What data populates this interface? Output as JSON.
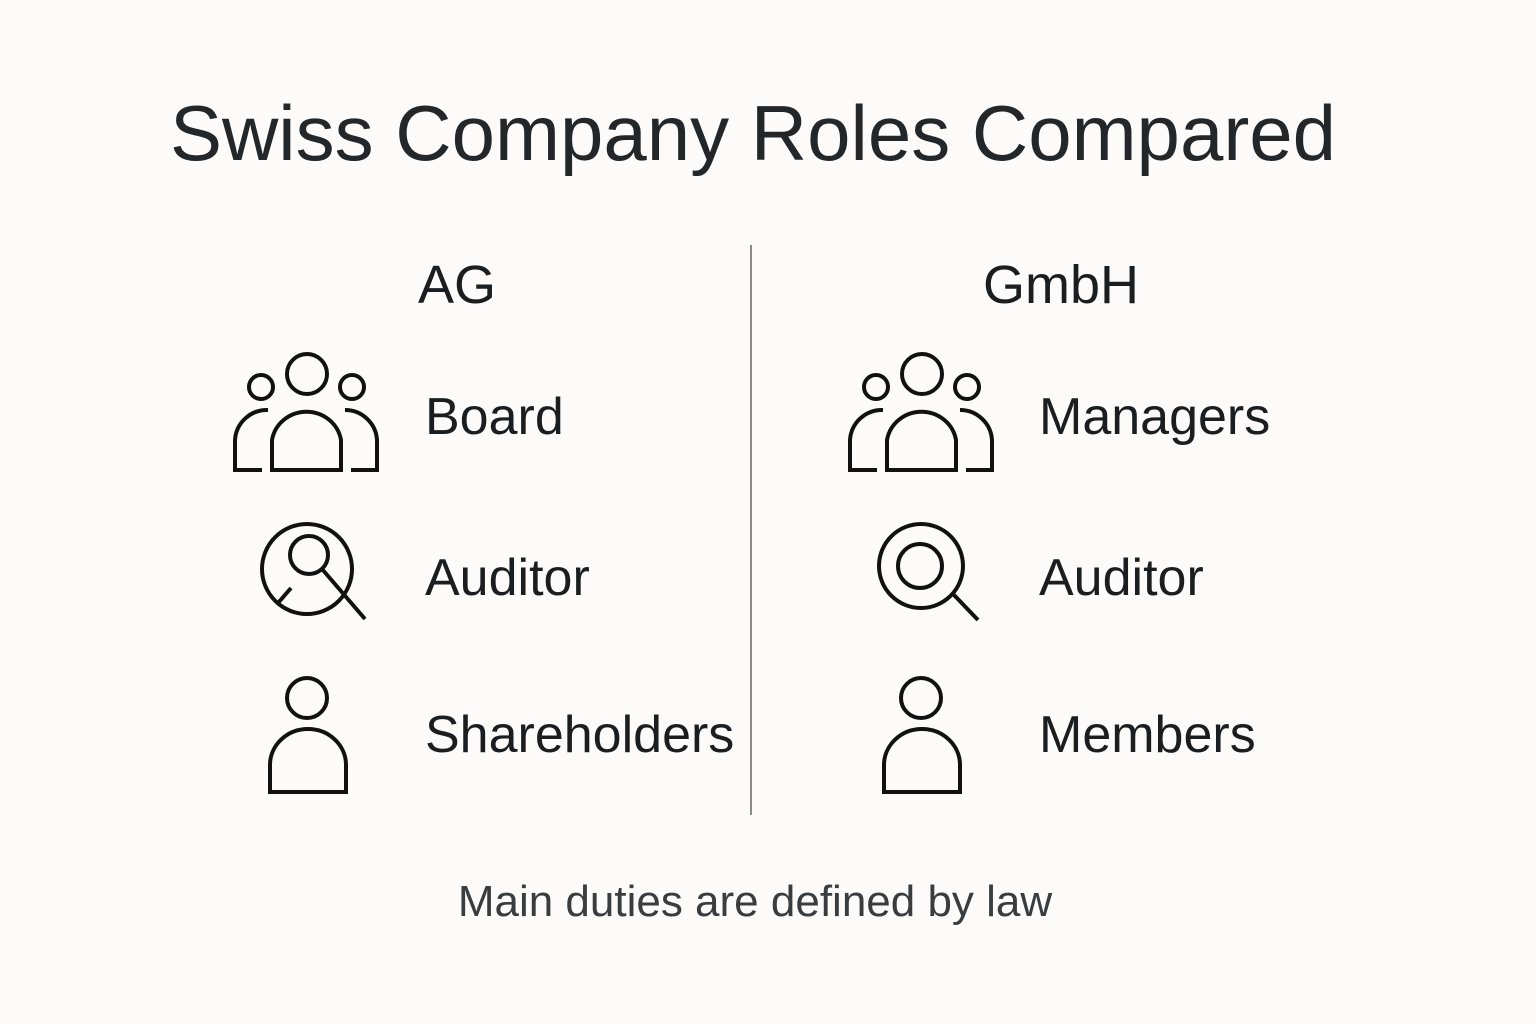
{
  "title": "Swiss Company Roles Compared",
  "columns": [
    {
      "heading": "AG",
      "roles": [
        {
          "label": "Board",
          "icon": "group-icon"
        },
        {
          "label": "Auditor",
          "icon": "person-search-icon"
        },
        {
          "label": "Shareholders",
          "icon": "person-icon"
        }
      ]
    },
    {
      "heading": "GmbH",
      "roles": [
        {
          "label": "Managers",
          "icon": "group-icon"
        },
        {
          "label": "Auditor",
          "icon": "magnifier-target-icon"
        },
        {
          "label": "Members",
          "icon": "person-icon"
        }
      ]
    }
  ],
  "footer": "Main duties are defined by law"
}
